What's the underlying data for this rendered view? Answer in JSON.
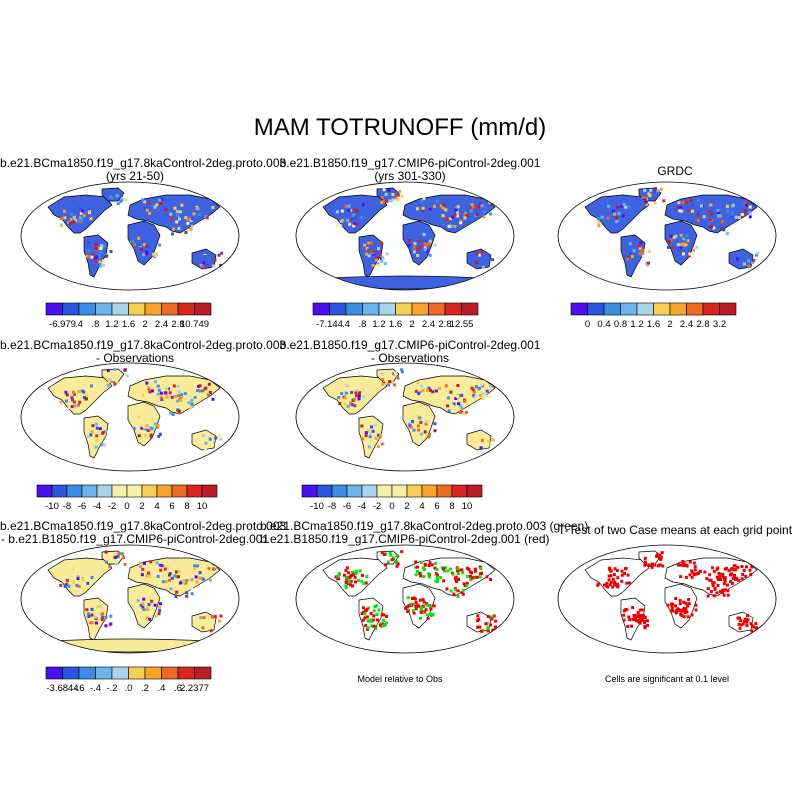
{
  "figure": {
    "title": "MAM TOTRUNOFF (mm/d)",
    "colors": {
      "palette": [
        "#4b10f0",
        "#2a55e0",
        "#3d8de6",
        "#6fb3ec",
        "#a8d3ea",
        "#f5f0a8",
        "#f7cf55",
        "#f6a22c",
        "#ec6b24",
        "#d92421",
        "#b91c27"
      ],
      "land_blue": "#3f63e0",
      "land_yellow": "#f8ec9a",
      "sig_red": "#ee0000",
      "ocean": "#ffffff",
      "coast": "#000000"
    }
  },
  "panels": [
    {
      "title1": "b.e21.BCma1850.f19_g17.8kaControl-2deg.proto.003",
      "title2": "(yrs 21-50)",
      "colorbar": [
        "-6.979",
        ".4",
        ".8",
        "1.2",
        "1.6",
        "2",
        "2.4",
        "2.8",
        "10.749"
      ]
    },
    {
      "title1": "b.e21.B1850.f19_g17.CMIP6-piControl-2deg.001",
      "title2": "(yrs 301-330)",
      "colorbar": [
        "-7.144",
        ".4",
        ".8",
        "1.2",
        "1.6",
        "2",
        "2.4",
        "2.8",
        "12.55"
      ]
    },
    {
      "title1": "GRDC",
      "title2": "",
      "colorbar": [
        "0",
        "0.4",
        "0.8",
        "1.2",
        "1.6",
        "2",
        "2.4",
        "2.8",
        "3.2"
      ]
    },
    {
      "title1": "b.e21.BCma1850.f19_g17.8kaControl-2deg.proto.003",
      "title2": "- Observations",
      "colorbar": [
        "-10",
        "-8",
        "-6",
        "-4",
        "-2",
        "0",
        "2",
        "4",
        "6",
        "8",
        "10"
      ]
    },
    {
      "title1": "b.e21.B1850.f19_g17.CMIP6-piControl-2deg.001",
      "title2": "- Observations",
      "colorbar": [
        "-10",
        "-8",
        "-6",
        "-4",
        "-2",
        "0",
        "2",
        "4",
        "6",
        "8",
        "10"
      ]
    },
    {
      "title1": "b.e21.BCma1850.f19_g17.8kaControl-2deg.proto.003",
      "title2": "- b.e21.B1850.f19_g17.CMIP6-piControl-2deg.001",
      "colorbar": [
        "-3.6844",
        "-.6",
        "-.4",
        "-.2",
        ".0",
        ".2",
        ".4",
        ".6",
        "2.2377"
      ]
    },
    {
      "title1": "b.e21.BCma1850.f19_g17.8kaControl-2deg.proto.003 (green)",
      "title2": "b.e21.B1850.f19_g17.CMIP6-piControl-2deg.001 (red)",
      "caption": "Model relative to Obs"
    },
    {
      "title1": "T-Test of two Case means at each grid point",
      "title2": "",
      "caption": "Cells are significant at 0.1 level"
    }
  ]
}
